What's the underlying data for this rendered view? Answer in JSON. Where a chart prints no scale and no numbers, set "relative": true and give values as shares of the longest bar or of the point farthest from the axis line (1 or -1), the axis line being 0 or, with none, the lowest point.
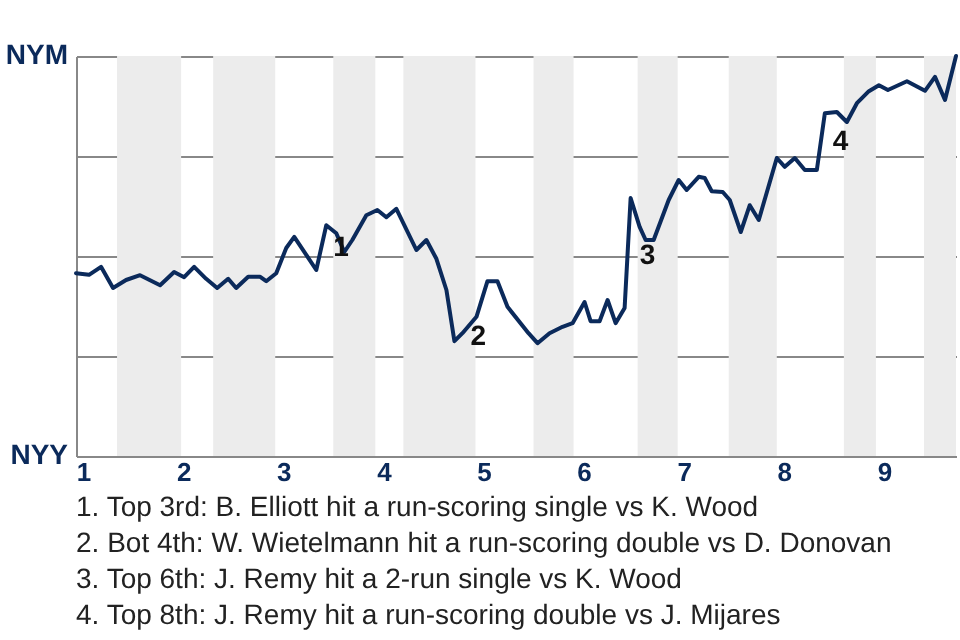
{
  "chart_data": {
    "type": "line",
    "relative": true,
    "x": [
      0.93,
      1.06,
      1.18,
      1.3,
      1.43,
      1.57,
      1.77,
      1.91,
      2.01,
      2.11,
      2.23,
      2.34,
      2.45,
      2.53,
      2.65,
      2.77,
      2.83,
      2.93,
      3.03,
      3.11,
      3.23,
      3.33,
      3.43,
      3.53,
      3.61,
      3.69,
      3.83,
      3.94,
      4.03,
      4.13,
      4.33,
      4.43,
      4.53,
      4.63,
      4.71,
      4.79,
      4.93,
      5.04,
      5.14,
      5.24,
      5.45,
      5.54,
      5.66,
      5.79,
      5.89,
      6.01,
      6.07,
      6.16,
      6.24,
      6.32,
      6.41,
      6.47,
      6.56,
      6.62,
      6.7,
      6.85,
      6.95,
      7.03,
      7.15,
      7.21,
      7.28,
      7.39,
      7.46,
      7.57,
      7.66,
      7.75,
      7.93,
      8.01,
      8.11,
      8.21,
      8.33,
      8.41,
      8.53,
      8.63,
      8.73,
      8.85,
      8.95,
      9.04,
      9.23,
      9.41,
      9.51,
      9.61,
      9.72
    ],
    "series": [
      {
        "color": "#0b2a5b",
        "values": [
          0.457,
          0.453,
          0.473,
          0.42,
          0.44,
          0.452,
          0.427,
          0.46,
          0.447,
          0.473,
          0.443,
          0.42,
          0.443,
          0.42,
          0.448,
          0.448,
          0.437,
          0.457,
          0.52,
          0.548,
          0.503,
          0.465,
          0.577,
          0.557,
          0.51,
          0.54,
          0.602,
          0.615,
          0.597,
          0.618,
          0.515,
          0.54,
          0.493,
          0.415,
          0.287,
          0.307,
          0.348,
          0.437,
          0.437,
          0.373,
          0.307,
          0.282,
          0.307,
          0.323,
          0.332,
          0.385,
          0.337,
          0.337,
          0.39,
          0.332,
          0.37,
          0.645,
          0.573,
          0.54,
          0.54,
          0.64,
          0.69,
          0.665,
          0.698,
          0.695,
          0.662,
          0.66,
          0.64,
          0.56,
          0.627,
          0.59,
          0.745,
          0.723,
          0.745,
          0.715,
          0.715,
          0.857,
          0.86,
          0.835,
          0.882,
          0.912,
          0.927,
          0.915,
          0.937,
          0.913,
          0.948,
          0.89,
          1.0
        ]
      }
    ],
    "xlim": [
      0.93,
      9.72
    ],
    "xticks": [
      1,
      2,
      3,
      4,
      5,
      6,
      7,
      8,
      9
    ],
    "grid": "y",
    "bands": [
      {
        "axis": "x",
        "from": 1.34,
        "to": 1.98,
        "color": "#ececec"
      },
      {
        "axis": "x",
        "from": 2.3,
        "to": 2.92,
        "color": "#ececec"
      },
      {
        "axis": "x",
        "from": 3.5,
        "to": 3.92,
        "color": "#ececec"
      },
      {
        "axis": "x",
        "from": 4.2,
        "to": 4.92,
        "color": "#ececec"
      },
      {
        "axis": "x",
        "from": 5.5,
        "to": 5.9,
        "color": "#ececec"
      },
      {
        "axis": "x",
        "from": 6.54,
        "to": 6.94,
        "color": "#ececec"
      },
      {
        "axis": "x",
        "from": 7.45,
        "to": 7.93,
        "color": "#ececec"
      },
      {
        "axis": "x",
        "from": 8.6,
        "to": 8.92,
        "color": "#ececec"
      },
      {
        "axis": "x",
        "from": 9.4,
        "to": 9.72,
        "color": "#ececec"
      }
    ],
    "annotations": [
      "NYM",
      "NYY",
      {
        "text": "1",
        "x": 3.38,
        "y": 0.52
      },
      {
        "text": "2",
        "x": 4.75,
        "y": 0.297
      },
      {
        "text": "3",
        "x": 6.44,
        "y": 0.5
      },
      {
        "text": "4",
        "x": 8.37,
        "y": 0.786
      },
      "1. Top 3rd: B. Elliott hit a run-scoring single vs K. Wood",
      "2. Bot 4th: W. Wietelmann hit a run-scoring double vs D. Donovan",
      "3. Top 6th: J. Remy hit a 2-run single vs K. Wood",
      "4. Top 8th: J. Remy hit a run-scoring double vs J. Mijares"
    ]
  }
}
